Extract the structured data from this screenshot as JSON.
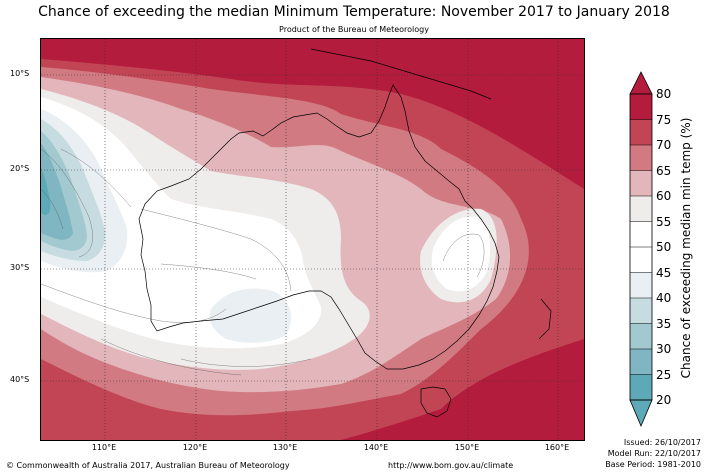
{
  "title": "Chance of exceeding the median Minimum Temperature: November 2017 to January 2018",
  "subtitle": "Product of the Bureau of Meteorology",
  "map": {
    "lat_labels": [
      "10°S",
      "20°S",
      "30°S",
      "40°S"
    ],
    "lon_labels": [
      "110°E",
      "120°E",
      "130°E",
      "140°E",
      "150°E",
      "160°E"
    ]
  },
  "colorbar": {
    "label": "Chance of exceeding median min temp (%)",
    "ticks": [
      "80",
      "75",
      "70",
      "65",
      "60",
      "55",
      "50",
      "45",
      "40",
      "35",
      "30",
      "25",
      "20"
    ],
    "colors": {
      "above_75": "#b31c3c",
      "70_75": "#c24556",
      "65_70": "#d27a82",
      "60_65": "#e2b6ba",
      "55_60": "#efedec",
      "45_55": "#ffffff",
      "40_45": "#e9eff2",
      "35_40": "#c7dce0",
      "30_35": "#a3c9d0",
      "25_30": "#7fb6c2",
      "below_25": "#5ea9b8"
    }
  },
  "footer": {
    "copyright": "© Commonwealth of Australia 2017, Australian Bureau of Meteorology",
    "url": "http://www.bom.gov.au/climate",
    "issued": "Issued: 26/10/2017",
    "model_run": "Model Run: 22/10/2017",
    "base_period": "Base Period: 1981-2010"
  }
}
